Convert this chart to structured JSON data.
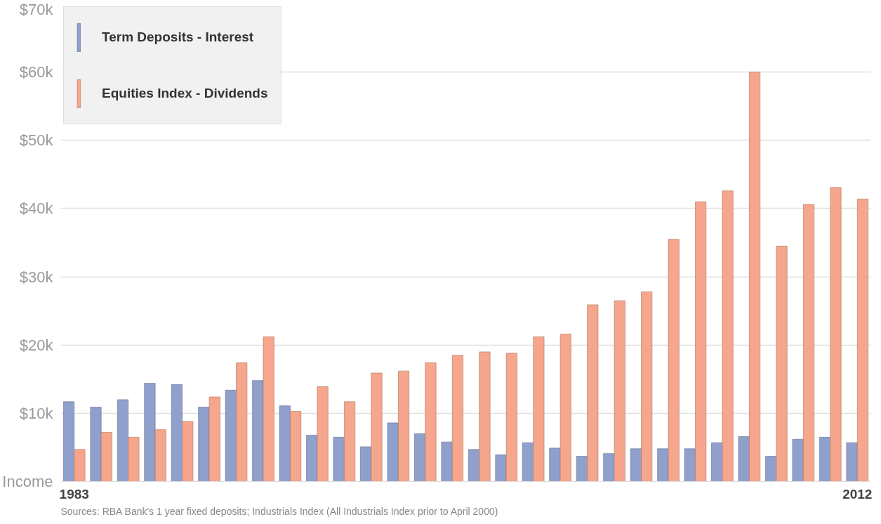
{
  "chart_data": {
    "type": "bar",
    "categories": [
      "1983",
      null,
      null,
      null,
      null,
      null,
      null,
      null,
      null,
      null,
      null,
      null,
      null,
      null,
      null,
      null,
      null,
      null,
      null,
      null,
      null,
      null,
      null,
      null,
      null,
      null,
      null,
      null,
      null,
      "2012"
    ],
    "series": [
      {
        "name": "Term Deposits - Interest",
        "color": "#8fa0cc",
        "values": [
          11700,
          10900,
          12000,
          14400,
          14200,
          10900,
          13400,
          14800,
          11100,
          6800,
          6500,
          5100,
          8600,
          7000,
          5800,
          4700,
          3900,
          5700,
          4900,
          3700,
          4100,
          4800,
          4800,
          4800,
          5700,
          6600,
          3700,
          6200,
          6500,
          5700
        ]
      },
      {
        "name": "Equities Index - Dividends",
        "color": "#f5a68c",
        "values": [
          4700,
          7200,
          6500,
          7600,
          8800,
          12400,
          17400,
          21200,
          10300,
          13900,
          11700,
          15900,
          16200,
          17400,
          18500,
          19000,
          18800,
          21200,
          21600,
          25900,
          26500,
          27800,
          35500,
          41000,
          42600,
          60000,
          34500,
          40600,
          43100,
          41400
        ]
      }
    ],
    "ylim": [
      0,
      70000
    ],
    "yticks": [
      {
        "value": 0,
        "label": "Income"
      },
      {
        "value": 10000,
        "label": "$10k"
      },
      {
        "value": 20000,
        "label": "$20k"
      },
      {
        "value": 30000,
        "label": "$30k"
      },
      {
        "value": 40000,
        "label": "$40k"
      },
      {
        "value": 50000,
        "label": "$50k"
      },
      {
        "value": 60000,
        "label": "$60k"
      },
      {
        "value": 70000,
        "label": "$70k"
      }
    ],
    "grid": "y",
    "legend": "top left",
    "annotations": [
      "Sources:  RBA Bank's 1 year fixed deposits; Industrials Index (All Industrials Index prior to April 2000)"
    ]
  }
}
